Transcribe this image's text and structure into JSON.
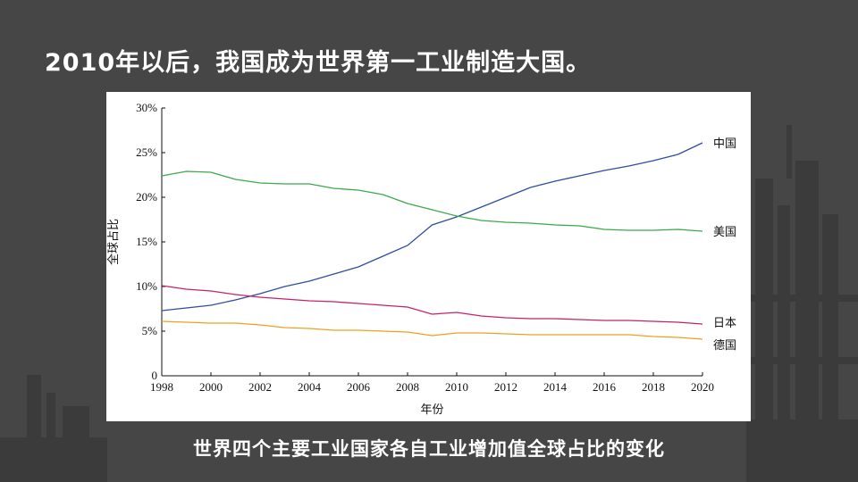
{
  "slide": {
    "title": "2010年以后，我国成为世界第一工业制造大国。",
    "caption": "世界四个主要工业国家各自工业增加值全球占比的变化"
  },
  "chart_data": {
    "type": "line",
    "title": "",
    "xlabel": "年份",
    "ylabel": "全球占比",
    "xlim": [
      1998,
      2020
    ],
    "ylim": [
      0,
      30
    ],
    "x_ticks": [
      "1998",
      "2000",
      "2002",
      "2004",
      "2006",
      "2008",
      "2010",
      "2012",
      "2014",
      "2016",
      "2018",
      "2020"
    ],
    "y_ticks": [
      "0",
      "5%",
      "10%",
      "15%",
      "20%",
      "25%",
      "30%"
    ],
    "grid": false,
    "legend": "end-of-line labels (right)",
    "x": [
      1998,
      1999,
      2000,
      2001,
      2002,
      2003,
      2004,
      2005,
      2006,
      2007,
      2008,
      2009,
      2010,
      2011,
      2012,
      2013,
      2014,
      2015,
      2016,
      2017,
      2018,
      2019,
      2020
    ],
    "series": [
      {
        "name": "中国",
        "color": "#2e4e9e",
        "values": [
          7.3,
          7.6,
          7.9,
          8.5,
          9.2,
          10.0,
          10.6,
          11.4,
          12.2,
          13.4,
          14.6,
          16.9,
          17.8,
          18.9,
          20.0,
          21.1,
          21.8,
          22.4,
          23.0,
          23.5,
          24.1,
          24.8,
          26.1
        ]
      },
      {
        "name": "美国",
        "color": "#3aaa4a",
        "values": [
          22.4,
          22.9,
          22.8,
          22.0,
          21.6,
          21.5,
          21.5,
          21.0,
          20.8,
          20.3,
          19.3,
          18.6,
          17.9,
          17.4,
          17.2,
          17.1,
          16.9,
          16.8,
          16.4,
          16.3,
          16.3,
          16.4,
          16.2
        ]
      },
      {
        "name": "日本",
        "color": "#c8206a",
        "values": [
          10.1,
          9.7,
          9.5,
          9.1,
          8.8,
          8.6,
          8.4,
          8.3,
          8.1,
          7.9,
          7.7,
          6.9,
          7.1,
          6.7,
          6.5,
          6.4,
          6.4,
          6.3,
          6.2,
          6.2,
          6.1,
          6.0,
          5.8
        ]
      },
      {
        "name": "德国",
        "color": "#f0a020",
        "values": [
          6.1,
          6.0,
          5.9,
          5.9,
          5.7,
          5.4,
          5.3,
          5.1,
          5.1,
          5.0,
          4.9,
          4.5,
          4.8,
          4.8,
          4.7,
          4.6,
          4.6,
          4.6,
          4.6,
          4.6,
          4.4,
          4.3,
          4.1
        ]
      }
    ]
  }
}
